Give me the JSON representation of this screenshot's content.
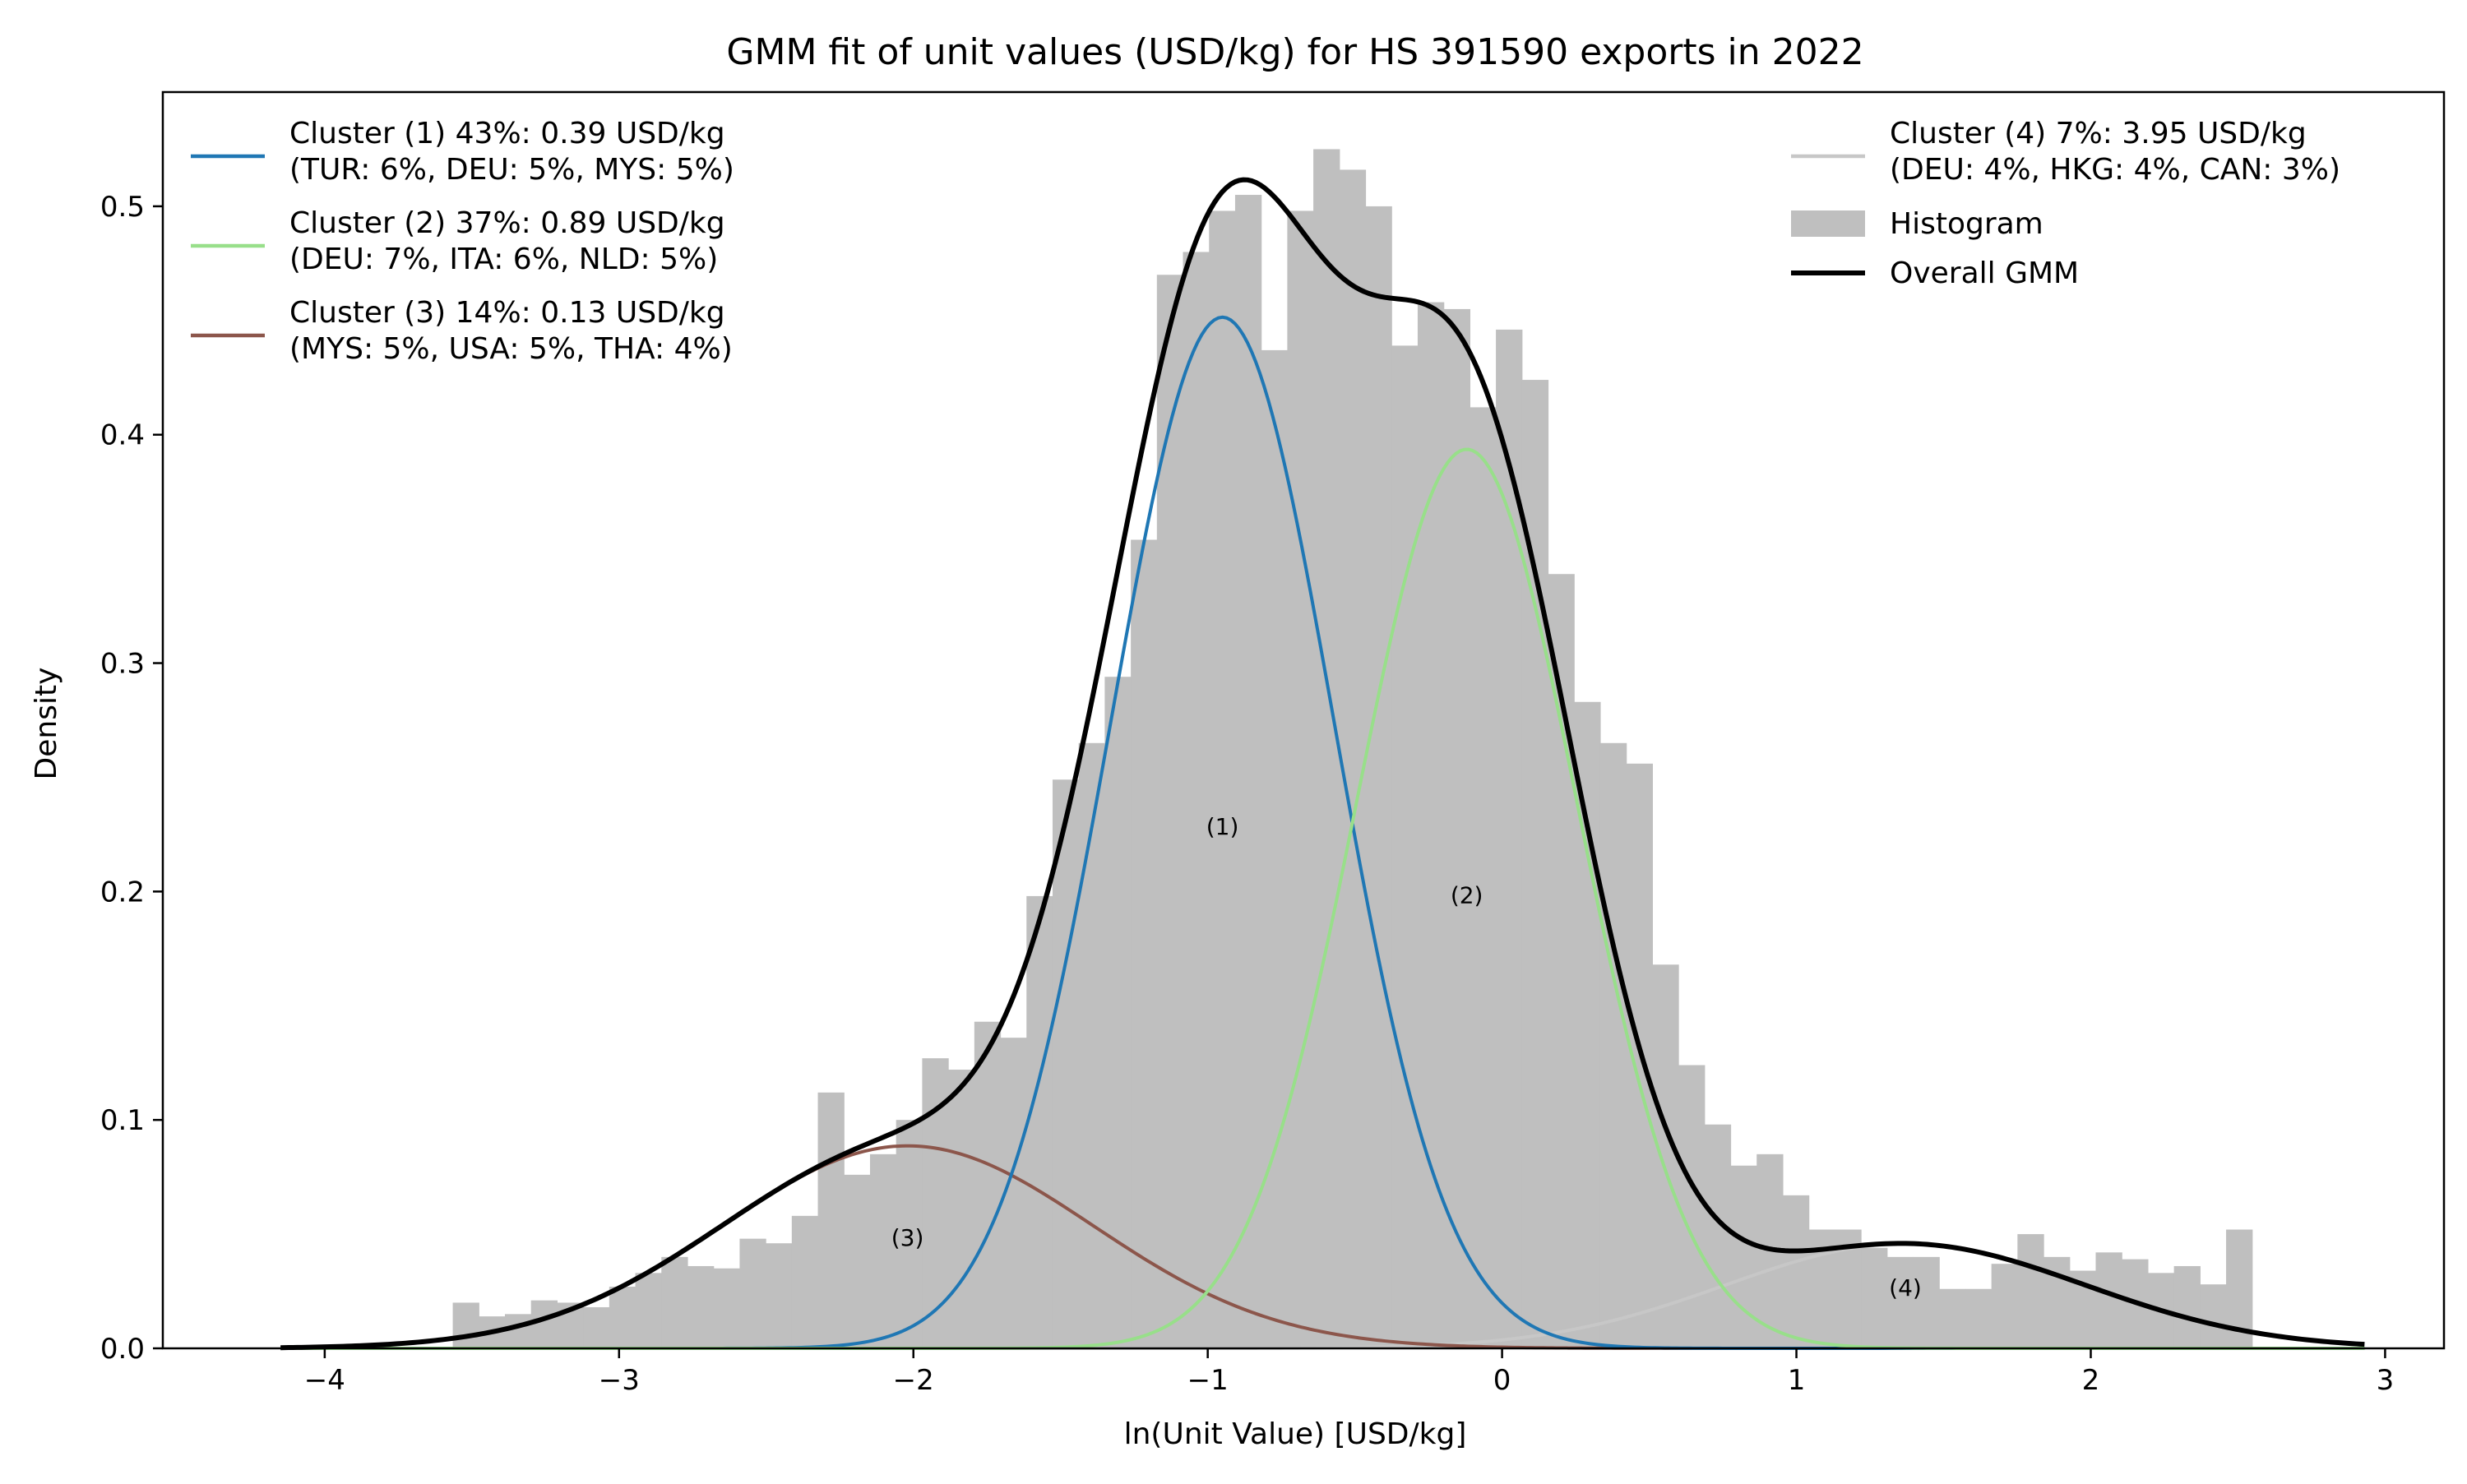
{
  "chart_data": {
    "type": "histogram_with_gmm",
    "title": "GMM fit of unit values (USD/kg) for HS 391590 exports in 2022",
    "xlabel": "ln(Unit Value) [USD/kg]",
    "ylabel": "Density",
    "xlim": [
      -4.55,
      3.2
    ],
    "ylim": [
      0,
      0.55
    ],
    "xticks": [
      -4,
      -3,
      -2,
      -1,
      0,
      1,
      2,
      3
    ],
    "xtick_labels": [
      "−4",
      "−3",
      "−2",
      "−1",
      "0",
      "1",
      "2",
      "3"
    ],
    "yticks": [
      0.0,
      0.1,
      0.2,
      0.3,
      0.4,
      0.5
    ],
    "ytick_labels": [
      "0.0",
      "0.1",
      "0.2",
      "0.3",
      "0.4",
      "0.5"
    ],
    "histogram": {
      "name": "Histogram",
      "color": "#bfbfbf",
      "bin_start": -3.565,
      "bin_width": 0.0886,
      "values": [
        0.02,
        0.014,
        0.015,
        0.021,
        0.02,
        0.018,
        0.027,
        0.033,
        0.04,
        0.036,
        0.035,
        0.048,
        0.046,
        0.058,
        0.112,
        0.076,
        0.085,
        0.1,
        0.127,
        0.122,
        0.143,
        0.136,
        0.198,
        0.249,
        0.265,
        0.294,
        0.354,
        0.47,
        0.48,
        0.498,
        0.505,
        0.437,
        0.498,
        0.525,
        0.516,
        0.5,
        0.439,
        0.458,
        0.455,
        0.412,
        0.446,
        0.424,
        0.339,
        0.283,
        0.265,
        0.256,
        0.168,
        0.124,
        0.098,
        0.08,
        0.085,
        0.067,
        0.052,
        0.052,
        0.044,
        0.04,
        0.04,
        0.026,
        0.026,
        0.037,
        0.05,
        0.04,
        0.034,
        0.042,
        0.039,
        0.033,
        0.036,
        0.028,
        0.052
      ]
    },
    "series": [
      {
        "name": "Cluster (1)",
        "legend_line1": "Cluster (1) 43%: 0.39 USD/kg",
        "legend_line2": "(TUR: 6%, DEU: 5%, MYS: 5%)",
        "color": "#1f77b4",
        "weight": 0.43,
        "mean": -0.95,
        "sd": 0.38,
        "annotation": "(1)",
        "annotation_x": -0.95,
        "annotation_y": 0.225
      },
      {
        "name": "Cluster (2)",
        "legend_line1": "Cluster (2) 37%: 0.89 USD/kg",
        "legend_line2": "(DEU: 7%, ITA: 6%, NLD: 5%)",
        "color": "#98df8a",
        "weight": 0.37,
        "mean": -0.12,
        "sd": 0.375,
        "annotation": "(2)",
        "annotation_x": -0.12,
        "annotation_y": 0.195
      },
      {
        "name": "Cluster (3)",
        "legend_line1": "Cluster (3) 14%: 0.13 USD/kg",
        "legend_line2": "(MYS: 5%, USA: 5%, THA: 4%)",
        "color": "#8c564b",
        "weight": 0.14,
        "mean": -2.02,
        "sd": 0.63,
        "annotation": "(3)",
        "annotation_x": -2.02,
        "annotation_y": 0.045
      },
      {
        "name": "Cluster (4)",
        "legend_line1": "Cluster (4) 7%: 3.95 USD/kg",
        "legend_line2": "(DEU: 4%, HKG: 4%, CAN: 3%)",
        "color": "#c7c7c7",
        "weight": 0.07,
        "mean": 1.37,
        "sd": 0.61,
        "annotation": "(4)",
        "annotation_x": 1.37,
        "annotation_y": 0.023
      }
    ],
    "overall": {
      "name": "Overall GMM",
      "color": "#000000",
      "x_range": [
        -4.15,
        2.93
      ]
    },
    "legend_left_placement": "upper-left",
    "legend_right_placement": "upper-right",
    "grid": false
  }
}
